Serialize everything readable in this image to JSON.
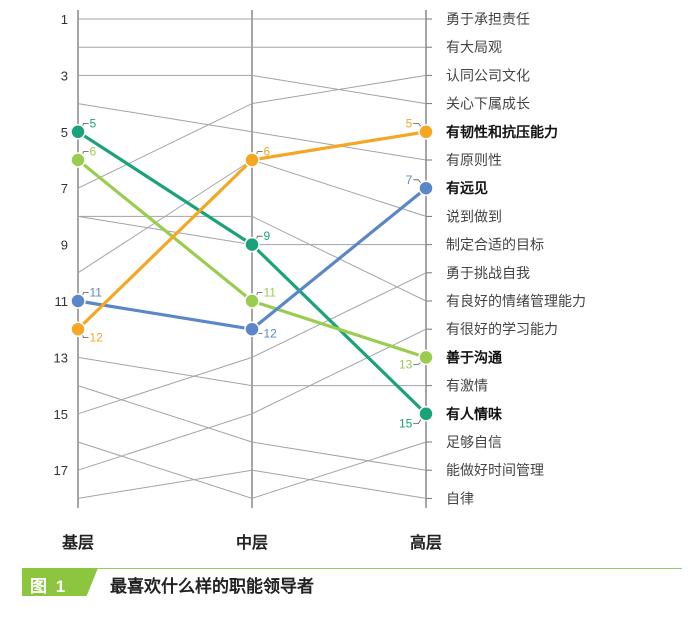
{
  "chart_data": {
    "type": "line",
    "x_categories": [
      "基层",
      "中层",
      "高层"
    ],
    "y_axis_ticks": [
      "1",
      "3",
      "5",
      "7",
      "9",
      "11",
      "13",
      "15",
      "17"
    ],
    "y_range": [
      1,
      18
    ],
    "y_inverted": true,
    "traits": [
      "勇于承担责任",
      "有大局观",
      "认同公司文化",
      "关心下属成长",
      "有韧性和抗压能力",
      "有原则性",
      "有远见",
      "说到做到",
      "制定合适的目标",
      "勇于挑战自我",
      "有良好的情绪管理能力",
      "有很好的学习能力",
      "善于沟通",
      "有激情",
      "有人情味",
      "足够自信",
      "能做好时间管理",
      "自律"
    ],
    "bold_traits": [
      5,
      7,
      13,
      15
    ],
    "grey_lines": [
      [
        1,
        1,
        1
      ],
      [
        2,
        2,
        2
      ],
      [
        3,
        3,
        4
      ],
      [
        4,
        5,
        6
      ],
      [
        7,
        4,
        3
      ],
      [
        8,
        8,
        11
      ],
      [
        10,
        6,
        8
      ],
      [
        8,
        9,
        9
      ],
      [
        13,
        14,
        14
      ],
      [
        14,
        16,
        17
      ],
      [
        15,
        13,
        10
      ],
      [
        16,
        18,
        16
      ],
      [
        17,
        15,
        12
      ],
      [
        18,
        17,
        18
      ]
    ],
    "series": [
      {
        "values": [
          5,
          9,
          15
        ],
        "labels": [
          "5",
          "9",
          "15"
        ],
        "color": "#1aa37a"
      },
      {
        "values": [
          6,
          11,
          13
        ],
        "labels": [
          "6",
          "11",
          "13"
        ],
        "color": "#9acd4f"
      },
      {
        "values": [
          11,
          12,
          7
        ],
        "labels": [
          "11",
          "12",
          "7"
        ],
        "color": "#5b87c8"
      },
      {
        "values": [
          12,
          6,
          5
        ],
        "labels": [
          "12",
          "6",
          "5"
        ],
        "color": "#f5a623"
      }
    ]
  },
  "caption": {
    "tag": "图 1",
    "title": "最喜欢什么样的职能领导者"
  }
}
